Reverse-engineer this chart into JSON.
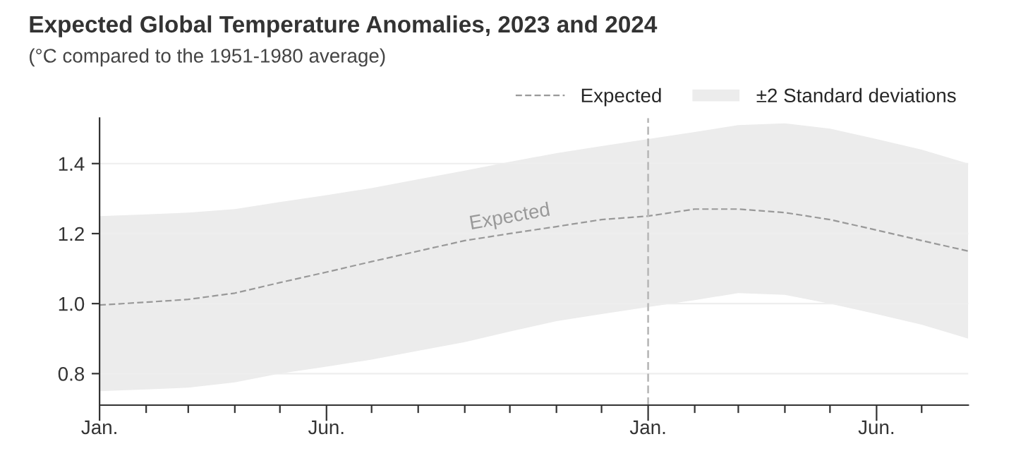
{
  "chart_data": {
    "type": "line",
    "title": "Expected Global Temperature Anomalies, 2023 and 2024",
    "subtitle": "(°C compared to the 1951-1980 average)",
    "x": [
      "2023-01",
      "2023-02",
      "2023-03",
      "2023-04",
      "2023-05",
      "2023-06",
      "2023-07",
      "2023-08",
      "2023-09",
      "2023-10",
      "2023-11",
      "2023-12",
      "2024-01",
      "2024-02",
      "2024-03",
      "2024-04",
      "2024-05",
      "2024-06",
      "2024-07",
      "2024-08"
    ],
    "series": [
      {
        "name": "Expected",
        "color": "#999999",
        "line_style": "dashed",
        "values": [
          0.996,
          1.004,
          1.012,
          1.03,
          1.06,
          1.09,
          1.12,
          1.15,
          1.18,
          1.2,
          1.22,
          1.24,
          1.25,
          1.27,
          1.27,
          1.26,
          1.24,
          1.21,
          1.18,
          1.15
        ],
        "lower": [
          0.75,
          0.755,
          0.76,
          0.775,
          0.8,
          0.82,
          0.84,
          0.865,
          0.89,
          0.92,
          0.95,
          0.97,
          0.99,
          1.01,
          1.03,
          1.025,
          1.0,
          0.97,
          0.94,
          0.9
        ],
        "upper": [
          1.25,
          1.255,
          1.26,
          1.27,
          1.29,
          1.31,
          1.33,
          1.355,
          1.38,
          1.405,
          1.43,
          1.45,
          1.47,
          1.49,
          1.51,
          1.515,
          1.5,
          1.47,
          1.44,
          1.4
        ]
      }
    ],
    "annotations": [
      {
        "text": "Expected",
        "x": "2023-10",
        "y": 1.2
      },
      "±2 Standard deviations"
    ],
    "ref_lines": [
      {
        "axis": "x",
        "value": "2024-01",
        "color": "#bbbbbb",
        "line_style": "dashed"
      }
    ],
    "xlim": [
      "2023-01",
      "2024-08"
    ],
    "xticks": [
      {
        "value": "2023-01",
        "label": "Jan."
      },
      {
        "value": "2023-02",
        "label": null
      },
      {
        "value": "2023-03",
        "label": null
      },
      {
        "value": "2023-04",
        "label": null
      },
      {
        "value": "2023-05",
        "label": null
      },
      {
        "value": "2023-06",
        "label": "Jun."
      },
      {
        "value": "2023-07",
        "label": null
      },
      {
        "value": "2023-08",
        "label": null
      },
      {
        "value": "2023-09",
        "label": null
      },
      {
        "value": "2023-10",
        "label": null
      },
      {
        "value": "2023-11",
        "label": null
      },
      {
        "value": "2023-12",
        "label": null
      },
      {
        "value": "2024-01",
        "label": "Jan."
      },
      {
        "value": "2024-02",
        "label": null
      },
      {
        "value": "2024-03",
        "label": null
      },
      {
        "value": "2024-04",
        "label": null
      },
      {
        "value": "2024-05",
        "label": null
      },
      {
        "value": "2024-06",
        "label": "Jun."
      },
      {
        "value": "2024-07",
        "label": null
      }
    ],
    "ylim": [
      0.71,
      1.53
    ],
    "yticks": [
      0.8,
      {
        "value": 1.0,
        "label": "1.0"
      },
      1.2,
      1.4
    ],
    "grid": "y",
    "legend": "top right"
  }
}
